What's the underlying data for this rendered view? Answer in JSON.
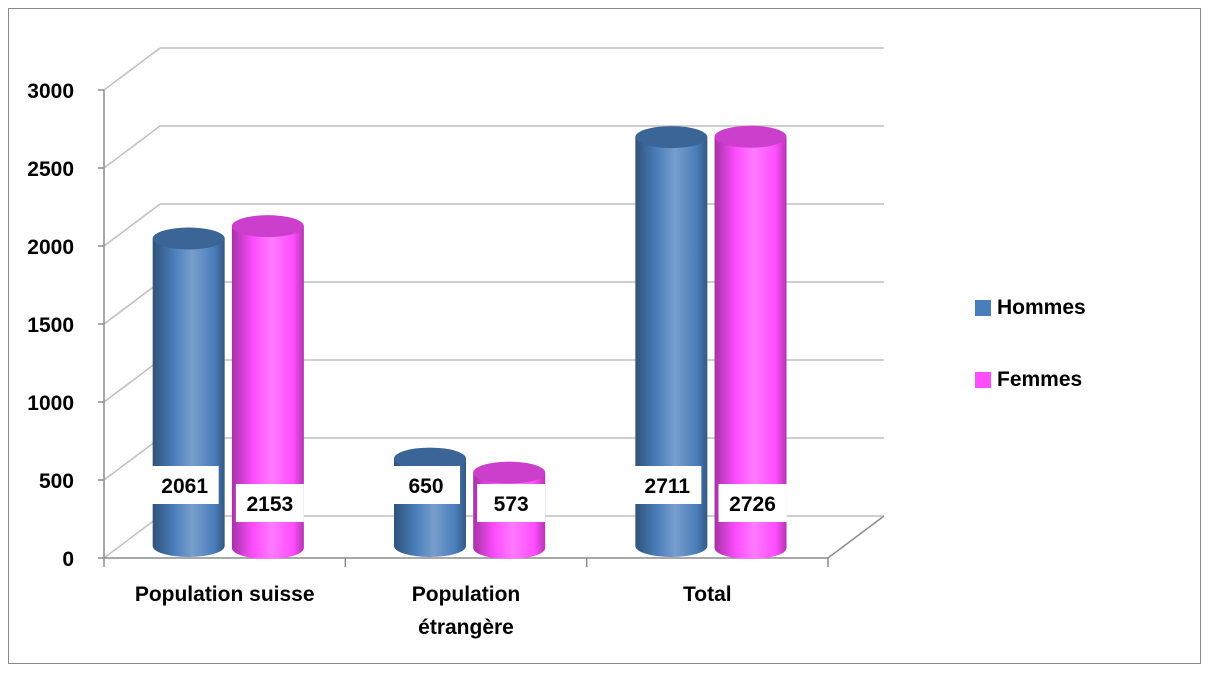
{
  "chart_data": {
    "type": "bar",
    "title": "",
    "xlabel": "",
    "ylabel": "",
    "categories": [
      "Population suisse",
      "Population étrangère",
      "Total"
    ],
    "category_lines": [
      [
        "Population suisse"
      ],
      [
        "Population",
        "étrangère"
      ],
      [
        "Total"
      ]
    ],
    "series": [
      {
        "name": "Hommes",
        "values": [
          2061,
          650,
          2711
        ],
        "color": "#4a7ebb"
      },
      {
        "name": "Femmes",
        "values": [
          2153,
          573,
          2726
        ],
        "color": "#ff4dff"
      }
    ],
    "ylim": [
      0,
      3000
    ],
    "yticks": [
      0,
      500,
      1000,
      1500,
      2000,
      2500,
      3000
    ],
    "grid": true,
    "legend_position": "right",
    "data_labels": true,
    "style": "3d-cylinder"
  }
}
